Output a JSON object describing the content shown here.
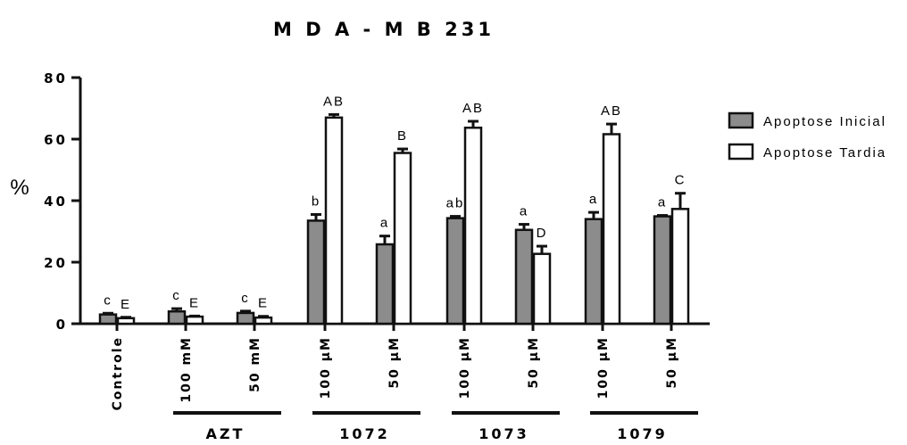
{
  "chart_data": {
    "type": "bar",
    "title": "M D A - M B  231",
    "ylabel": "%",
    "xlabel": "",
    "ylim": [
      0,
      80
    ],
    "yticks": [
      "0",
      "20",
      "40",
      "60",
      "80"
    ],
    "grid": false,
    "legend_position": "right",
    "categories": [
      "Controle",
      "100 mM",
      "50 mM",
      "100 µM",
      "50 µM",
      "100 µM",
      "50 µM",
      "100 µM",
      "50 µM"
    ],
    "groups": [
      {
        "label": "AZT",
        "categories": [
          1,
          2
        ]
      },
      {
        "label": "1072",
        "categories": [
          3,
          4
        ]
      },
      {
        "label": "1073",
        "categories": [
          5,
          6
        ]
      },
      {
        "label": "1079",
        "categories": [
          7,
          8
        ]
      }
    ],
    "series": [
      {
        "name": "Apoptose Inicial",
        "color": "#8c8c8c",
        "values": [
          3.0,
          4.0,
          3.5,
          33.5,
          25.8,
          34.3,
          30.5,
          34.0,
          34.9
        ],
        "errors": [
          0.4,
          0.9,
          0.6,
          2.0,
          2.7,
          0.6,
          1.8,
          2.2,
          0.3
        ],
        "labels": [
          "c",
          "c",
          "c",
          "b",
          "a",
          "ab",
          "a",
          "a",
          "a"
        ]
      },
      {
        "name": "Apoptose Tardia",
        "color": "#ffffff",
        "values": [
          1.8,
          2.3,
          2.0,
          67.0,
          55.5,
          63.7,
          22.7,
          61.6,
          37.3
        ],
        "errors": [
          0.3,
          0.2,
          0.4,
          1.0,
          1.3,
          2.1,
          2.5,
          3.3,
          5.1
        ],
        "labels": [
          "E",
          "E",
          "E",
          "AB",
          "B",
          "AB",
          "D",
          "AB",
          "C"
        ]
      }
    ]
  }
}
